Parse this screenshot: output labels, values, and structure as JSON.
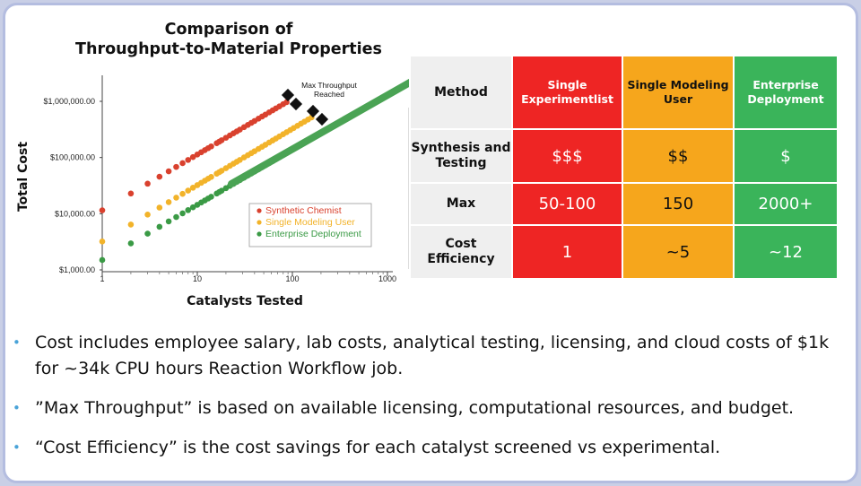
{
  "chart_data": {
    "type": "scatter",
    "title_line1": "Comparison of",
    "title_line2": "Throughput-to-Material Properties",
    "xlabel": "Catalysts Tested",
    "ylabel": "Total Cost",
    "x_scale": "log",
    "y_scale": "log",
    "xlim": [
      1,
      1000
    ],
    "ylim": [
      1000,
      1000000
    ],
    "x_ticks": [
      "1",
      "10",
      "100",
      "1000"
    ],
    "y_ticks": [
      "$1,000.00",
      "$10,000.00",
      "$100,000.00",
      "$1,000,000.00"
    ],
    "grid": false,
    "legend_position": "lower-right",
    "series": [
      {
        "name": "Synthetic Chemist",
        "color": "#d9412e",
        "x_start": 1,
        "x_end": 90,
        "y_start": 11500,
        "y_end": 1000000
      },
      {
        "name": "Single Modeling User",
        "color": "#f2b32a",
        "x_start": 1,
        "x_end": 160,
        "y_start": 3200,
        "y_end": 520000
      },
      {
        "name": "Enterprise Deployment",
        "color": "#3a9a45",
        "x_start": 1,
        "x_end": 190,
        "y_start": 1500,
        "y_end": 260000
      }
    ],
    "annotation": {
      "line1": "Max Throughput",
      "line2": "Reached"
    }
  },
  "table": {
    "headers": [
      "Method",
      "Single Experimentlist",
      "Single Modeling User",
      "Enterprise Deployment"
    ],
    "rows": [
      {
        "label": "Synthesis and Testing",
        "values": [
          "$$$",
          "$$",
          "$"
        ]
      },
      {
        "label": "Max",
        "values": [
          "50-100",
          "150",
          "2000+"
        ]
      },
      {
        "label": "Cost Efficiency",
        "values": [
          "1",
          "~5",
          "~12"
        ]
      }
    ]
  },
  "notes": [
    "Cost includes employee salary, lab costs, analytical testing, licensing, and cloud costs of $1k for ~34k CPU hours Reaction Workflow job.",
    "”Max Throughput” is based on available licensing, computational resources, and budget.",
    "“Cost Efficiency” is the cost savings for each catalyst screened vs experimental."
  ],
  "colors": {
    "red": "#ee2524",
    "orange": "#f6a61c",
    "green": "#3ab45a",
    "arrow": "#4aa354",
    "bullet": "#4aa3d8"
  }
}
